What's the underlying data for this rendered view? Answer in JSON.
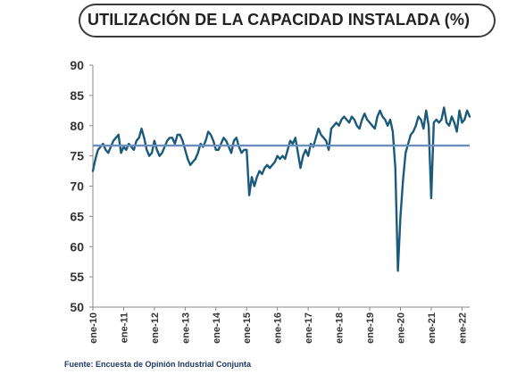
{
  "chart_data": {
    "type": "line",
    "title": "UTILIZACIÓN DE LA CAPACIDAD INSTALADA (%)",
    "source": "Fuente: Encuesta de Opinión Industrial Conjunta",
    "ylim": [
      50,
      90
    ],
    "yticks": [
      50,
      55,
      60,
      65,
      70,
      75,
      80,
      85,
      90
    ],
    "xlabels": [
      "ene-10",
      "ene-11",
      "ene-12",
      "ene-13",
      "ene-14",
      "ene-15",
      "ene-16",
      "ene-17",
      "ene-18",
      "ene-19",
      "ene-20",
      "ene-21",
      "ene-22"
    ],
    "x_start": "2010-01",
    "grid": false,
    "reference_line": 76.7,
    "colors": {
      "series": "#1b5a7a",
      "reference": "#6a8fbf",
      "axis": "#8a8a8a"
    },
    "series": [
      {
        "values": [
          72.5,
          74.5,
          76,
          76.5,
          77,
          76,
          75.5,
          76.5,
          77.5,
          78,
          78.5,
          75.5,
          76.5,
          76,
          77,
          76.5,
          76,
          77.5,
          78,
          79.5,
          78,
          76,
          75,
          75.5,
          77.5,
          76,
          75,
          75.5,
          76.5,
          77.5,
          78,
          78,
          77,
          78.5,
          78.5,
          77.5,
          76,
          74.5,
          73.5,
          74,
          74.5,
          75.5,
          77,
          76.5,
          77.5,
          79,
          78.5,
          77.5,
          76,
          76,
          77,
          78,
          77.5,
          76.5,
          75.5,
          77.5,
          78,
          76.5,
          75.5,
          76,
          76,
          68.5,
          71.5,
          70,
          71.5,
          72.5,
          72,
          73,
          73.5,
          73,
          73.5,
          74,
          75,
          74.5,
          75,
          74.5,
          76,
          77.5,
          77,
          78,
          75.5,
          73,
          75,
          76,
          75,
          77,
          76.5,
          78,
          79.5,
          78.5,
          78,
          77.5,
          76,
          79.5,
          80,
          80.5,
          80,
          81,
          81.5,
          81,
          80.5,
          81.5,
          81,
          80,
          79.5,
          81,
          82,
          81,
          80.5,
          80,
          79.5,
          81.5,
          82.5,
          81.5,
          81,
          80,
          81,
          79,
          73,
          56,
          65,
          71,
          75.5,
          77,
          78.5,
          79,
          80,
          81.5,
          81,
          79.5,
          82.5,
          80,
          68,
          80.5,
          81,
          80.5,
          81,
          83,
          80.5,
          80,
          81.5,
          80.5,
          79,
          82.5,
          80.5,
          81,
          82.5,
          81.5
        ]
      }
    ]
  }
}
